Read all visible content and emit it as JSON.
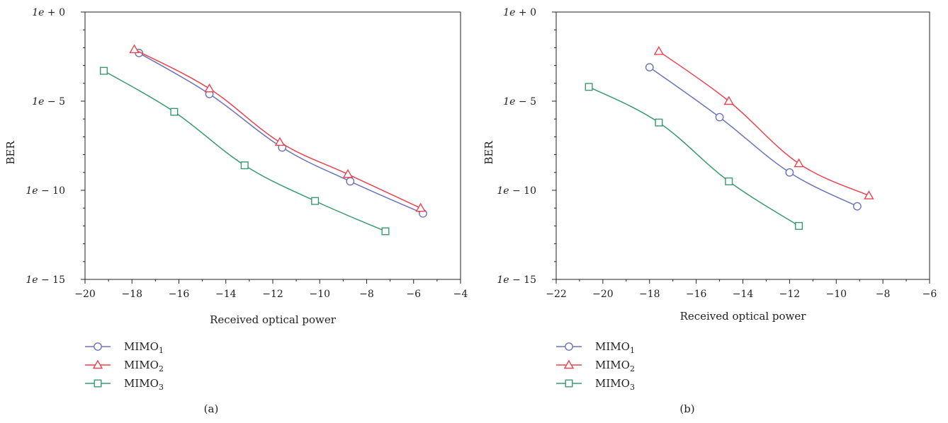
{
  "chart_data": [
    {
      "type": "line",
      "panel_label": "(a)",
      "xlabel": "Received optical power",
      "ylabel": "BER",
      "xlim": [
        -20,
        -4
      ],
      "x_ticks": [
        -20,
        -18,
        -16,
        -14,
        -12,
        -10,
        -8,
        -6,
        -4
      ],
      "y_scale": "log",
      "ylim_exponent": [
        -15,
        0
      ],
      "y_ticks": [
        {
          "exp": 0,
          "label": "1e + 0"
        },
        {
          "exp": -5,
          "label": "1e − 5"
        },
        {
          "exp": -10,
          "label": "1e − 10"
        },
        {
          "exp": -15,
          "label": "1e − 15"
        }
      ],
      "grid": false,
      "legend_position": "below-left",
      "series": [
        {
          "name": "MIMO1",
          "marker": "circle",
          "color": "#6a73b8",
          "x": [
            -17.7,
            -14.7,
            -11.6,
            -8.7,
            -5.6
          ],
          "y_exp": [
            -2.3,
            -4.6,
            -7.6,
            -9.5,
            -11.3
          ]
        },
        {
          "name": "MIMO2",
          "marker": "triangle",
          "color": "#e8434f",
          "x": [
            -17.9,
            -14.7,
            -11.7,
            -8.8,
            -5.7
          ],
          "y_exp": [
            -2.1,
            -4.3,
            -7.3,
            -9.1,
            -11.0
          ]
        },
        {
          "name": "MIMO3",
          "marker": "square",
          "color": "#3a9a6e",
          "x": [
            -19.2,
            -16.2,
            -13.2,
            -10.2,
            -7.2
          ],
          "y_exp": [
            -3.3,
            -5.6,
            -8.6,
            -10.6,
            -12.3
          ]
        }
      ]
    },
    {
      "type": "line",
      "panel_label": "(b)",
      "xlabel": "Received optical power",
      "ylabel": "BER",
      "xlim": [
        -22,
        -6
      ],
      "x_ticks": [
        -22,
        -20,
        -18,
        -16,
        -14,
        -12,
        -10,
        -8,
        -6
      ],
      "y_scale": "log",
      "ylim_exponent": [
        -15,
        0
      ],
      "y_ticks": [
        {
          "exp": 0,
          "label": "1e + 0"
        },
        {
          "exp": -5,
          "label": "1e − 5"
        },
        {
          "exp": -10,
          "label": "1e − 10"
        },
        {
          "exp": -15,
          "label": "1e − 15"
        }
      ],
      "grid": false,
      "legend_position": "below-left",
      "series": [
        {
          "name": "MIMO1",
          "marker": "circle",
          "color": "#6a73b8",
          "x": [
            -18.0,
            -15.0,
            -12.0,
            -9.1
          ],
          "y_exp": [
            -3.1,
            -5.9,
            -9.0,
            -10.9
          ]
        },
        {
          "name": "MIMO2",
          "marker": "triangle",
          "color": "#e8434f",
          "x": [
            -17.6,
            -14.6,
            -11.6,
            -8.6
          ],
          "y_exp": [
            -2.2,
            -5.0,
            -8.5,
            -10.3
          ]
        },
        {
          "name": "MIMO3",
          "marker": "square",
          "color": "#3a9a6e",
          "x": [
            -20.6,
            -17.6,
            -14.6,
            -11.6
          ],
          "y_exp": [
            -4.2,
            -6.2,
            -9.5,
            -12.0
          ]
        }
      ]
    }
  ],
  "legend": [
    {
      "base": "MIMO",
      "sub": "1"
    },
    {
      "base": "MIMO",
      "sub": "2"
    },
    {
      "base": "MIMO",
      "sub": "3"
    }
  ]
}
